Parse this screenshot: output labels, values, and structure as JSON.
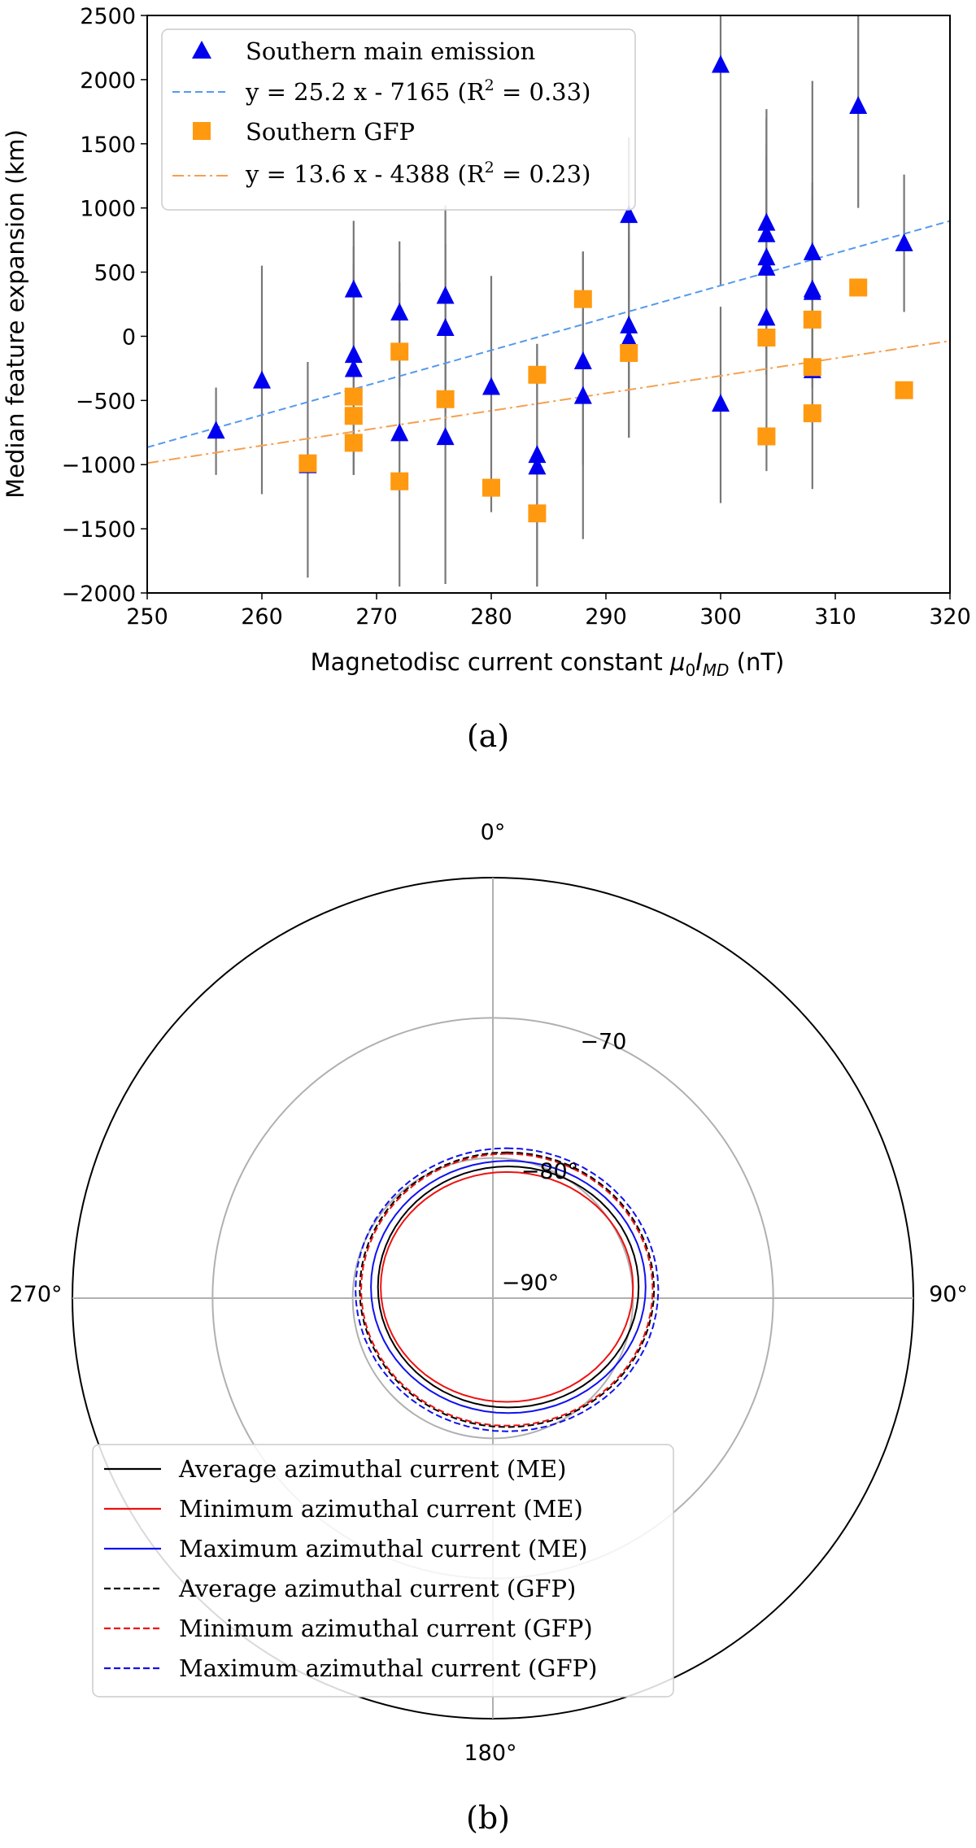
{
  "chart_data": [
    {
      "type": "scatter",
      "panel_label": "(a)",
      "xlabel_prefix": "Magnetodisc current constant ",
      "xlabel_symbol": "μ",
      "xlabel_sub0": "0",
      "xlabel_I": "I",
      "xlabel_subMD": "MD",
      "xlabel_suffix": " (nT)",
      "ylabel": "Median feature expansion (km)",
      "xlim": [
        250,
        320
      ],
      "ylim": [
        -2000,
        2500
      ],
      "xticks": [
        250,
        260,
        270,
        280,
        290,
        300,
        310,
        320
      ],
      "yticks": [
        -2000,
        -1500,
        -1000,
        -500,
        0,
        500,
        1000,
        1500,
        2000,
        2500
      ],
      "ytick_labels": [
        "−2000",
        "−1500",
        "−1000",
        "−500",
        "0",
        "500",
        "1000",
        "1500",
        "2000",
        "2500"
      ],
      "grid": false,
      "legend_position": "top-left",
      "legend": [
        {
          "label": "Southern main emission",
          "marker": "triangle",
          "color": "#0000ee"
        },
        {
          "label": "y = 25.2 x - 7165 (R",
          "sup": "2",
          "tail": " = 0.33)",
          "style": "dashed",
          "color": "#5599ee"
        },
        {
          "label": "Southern GFP",
          "marker": "square",
          "color": "#ff9910"
        },
        {
          "label": "y = 13.6 x - 4388 (R",
          "sup": "2",
          "tail": " = 0.23)",
          "style": "dashdot",
          "color": "#f5a050"
        }
      ],
      "series": [
        {
          "name": "Southern main emission",
          "color": "#0000ee",
          "marker": "triangle",
          "points": [
            {
              "x": 256,
              "y": -740,
              "lo": -1080,
              "hi": -400
            },
            {
              "x": 260,
              "y": -350,
              "lo": -1230,
              "hi": 550
            },
            {
              "x": 264,
              "y": -1010,
              "lo": -1880,
              "hi": -200
            },
            {
              "x": 268,
              "y": 360,
              "lo": -180,
              "hi": 900
            },
            {
              "x": 268,
              "y": -150,
              "lo": -1080,
              "hi": 700
            },
            {
              "x": 268,
              "y": -260,
              "lo": -1080,
              "hi": 560
            },
            {
              "x": 272,
              "y": 180,
              "lo": -400,
              "hi": 740
            },
            {
              "x": 272,
              "y": -760,
              "lo": -1950,
              "hi": 420
            },
            {
              "x": 276,
              "y": 310,
              "lo": -400,
              "hi": 1020
            },
            {
              "x": 276,
              "y": 60,
              "lo": -600,
              "hi": 720
            },
            {
              "x": 276,
              "y": -790,
              "lo": -1930,
              "hi": 350
            },
            {
              "x": 280,
              "y": -400,
              "lo": -1370,
              "hi": 470
            },
            {
              "x": 284,
              "y": -930,
              "lo": -1950,
              "hi": -60
            },
            {
              "x": 284,
              "y": -1020,
              "lo": -1950,
              "hi": -60
            },
            {
              "x": 288,
              "y": -200,
              "lo": -1000,
              "hi": 660
            },
            {
              "x": 288,
              "y": -470,
              "lo": -1580,
              "hi": 660
            },
            {
              "x": 292,
              "y": 940,
              "lo": 280,
              "hi": 1550
            },
            {
              "x": 292,
              "y": 80,
              "lo": -790,
              "hi": 1000
            },
            {
              "x": 292,
              "y": -30,
              "lo": -790,
              "hi": 800
            },
            {
              "x": 300,
              "y": 2110,
              "lo": 400,
              "hi": 2500
            },
            {
              "x": 300,
              "y": -530,
              "lo": -1300,
              "hi": 230
            },
            {
              "x": 304,
              "y": 880,
              "lo": -100,
              "hi": 1770
            },
            {
              "x": 304,
              "y": 790,
              "lo": -100,
              "hi": 1700
            },
            {
              "x": 304,
              "y": 610,
              "lo": -300,
              "hi": 1500
            },
            {
              "x": 304,
              "y": 530,
              "lo": -300,
              "hi": 1400
            },
            {
              "x": 304,
              "y": 140,
              "lo": -1050,
              "hi": 900
            },
            {
              "x": 308,
              "y": 650,
              "lo": -200,
              "hi": 1990
            },
            {
              "x": 308,
              "y": 360,
              "lo": -300,
              "hi": 1200
            },
            {
              "x": 308,
              "y": 340,
              "lo": -400,
              "hi": 1100
            },
            {
              "x": 308,
              "y": -270,
              "lo": -1190,
              "hi": 500
            },
            {
              "x": 312,
              "y": 1790,
              "lo": 1000,
              "hi": 2500
            },
            {
              "x": 316,
              "y": 720,
              "lo": 190,
              "hi": 1260
            }
          ]
        },
        {
          "name": "Southern GFP",
          "color": "#ff9910",
          "marker": "square",
          "points": [
            {
              "x": 264,
              "y": -990
            },
            {
              "x": 268,
              "y": -470
            },
            {
              "x": 268,
              "y": -620
            },
            {
              "x": 268,
              "y": -830
            },
            {
              "x": 272,
              "y": -120
            },
            {
              "x": 272,
              "y": -1130
            },
            {
              "x": 276,
              "y": -490
            },
            {
              "x": 280,
              "y": -1180
            },
            {
              "x": 284,
              "y": -300
            },
            {
              "x": 284,
              "y": -1380
            },
            {
              "x": 288,
              "y": 290
            },
            {
              "x": 292,
              "y": -130
            },
            {
              "x": 304,
              "y": -10
            },
            {
              "x": 304,
              "y": -780
            },
            {
              "x": 308,
              "y": 130
            },
            {
              "x": 308,
              "y": -240
            },
            {
              "x": 308,
              "y": -600
            },
            {
              "x": 312,
              "y": 380
            },
            {
              "x": 316,
              "y": -420
            }
          ]
        }
      ],
      "fits": [
        {
          "slope": 25.2,
          "intercept": -7165,
          "color": "#5599ee",
          "style": "dashed"
        },
        {
          "slope": 13.6,
          "intercept": -4388,
          "color": "#f5a050",
          "style": "dashdot"
        }
      ]
    },
    {
      "type": "polar",
      "panel_label": "(b)",
      "angle_labels": {
        "top": "0°",
        "right": "90°",
        "bottom": "180°",
        "left": "270°"
      },
      "radial_labels": [
        {
          "text": "−70",
          "lat": -70
        },
        {
          "text": "−80°",
          "lat": -80
        },
        {
          "text": "−90°",
          "lat": -90
        }
      ],
      "grid_rings_lat": [
        -80,
        -70
      ],
      "outer_lat": -60,
      "legend_position": "lower-left",
      "series": [
        {
          "name": "Average azimuthal current (ME)",
          "color": "#000000",
          "style": "solid",
          "center_lat_offset": [
            1.1,
            -0.8
          ],
          "rx": 9.3,
          "ry": 8.6
        },
        {
          "name": "Minimum azimuthal current (ME)",
          "color": "#ee1111",
          "style": "solid",
          "center_lat_offset": [
            1.0,
            -0.8
          ],
          "rx": 9.0,
          "ry": 8.2
        },
        {
          "name": "Maximum azimuthal current (ME)",
          "color": "#1111ee",
          "style": "solid",
          "center_lat_offset": [
            1.1,
            -0.8
          ],
          "rx": 9.8,
          "ry": 9.0
        },
        {
          "name": "Average azimuthal current (GFP)",
          "color": "#000000",
          "style": "dashed",
          "center_lat_offset": [
            1.0,
            -0.6
          ],
          "rx": 10.5,
          "ry": 9.8
        },
        {
          "name": "Minimum azimuthal current (GFP)",
          "color": "#ee1111",
          "style": "dashed",
          "center_lat_offset": [
            1.0,
            -0.6
          ],
          "rx": 10.4,
          "ry": 9.7
        },
        {
          "name": "Maximum azimuthal current (GFP)",
          "color": "#1111ee",
          "style": "dashed",
          "center_lat_offset": [
            1.0,
            -0.6
          ],
          "rx": 10.8,
          "ry": 10.1
        }
      ]
    }
  ]
}
